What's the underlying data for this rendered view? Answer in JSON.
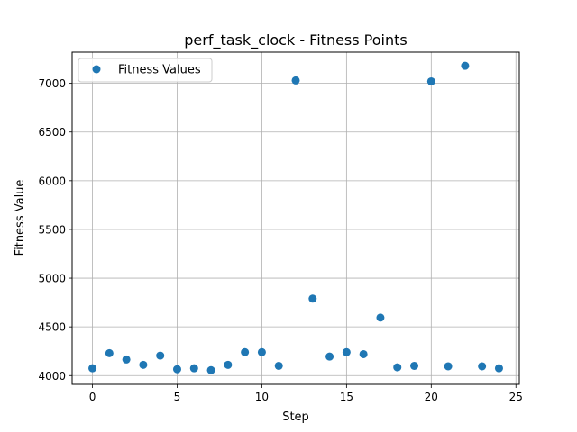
{
  "chart_data": {
    "type": "scatter",
    "title": "perf_task_clock - Fitness Points",
    "xlabel": "Step",
    "ylabel": "Fitness Value",
    "xlim": [
      -1.2,
      25.2
    ],
    "ylim": [
      3910,
      7320
    ],
    "x_ticks": [
      0,
      5,
      10,
      15,
      20,
      25
    ],
    "y_ticks": [
      4000,
      4500,
      5000,
      5500,
      6000,
      6500,
      7000
    ],
    "grid": true,
    "legend_position": "top-left",
    "series": [
      {
        "name": "Fitness Values",
        "color": "#1f77b4",
        "x": [
          0,
          1,
          2,
          3,
          4,
          5,
          6,
          7,
          8,
          9,
          10,
          11,
          12,
          13,
          14,
          15,
          16,
          17,
          18,
          19,
          20,
          21,
          22,
          23,
          24
        ],
        "y": [
          4075,
          4230,
          4165,
          4110,
          4205,
          4065,
          4075,
          4055,
          4110,
          4240,
          4240,
          4100,
          7030,
          4790,
          4195,
          4240,
          4220,
          4595,
          4085,
          4100,
          7020,
          4095,
          7180,
          4095,
          4075
        ]
      }
    ]
  }
}
